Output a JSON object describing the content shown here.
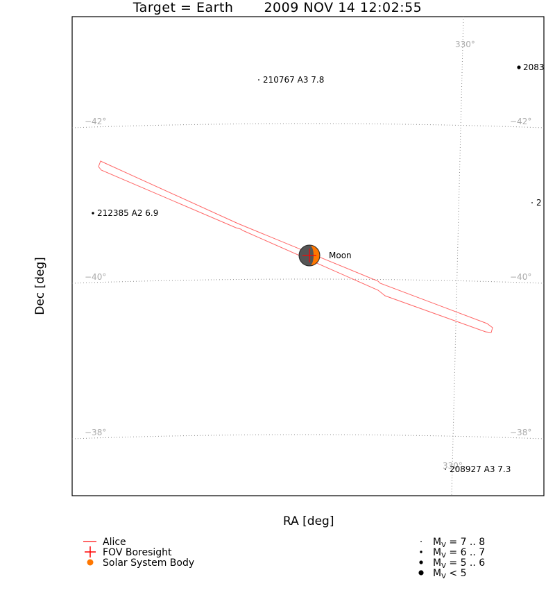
{
  "chart_data": {
    "type": "scatter",
    "title": "Target = Earth",
    "timestamp": "2009 NOV 14 12:02:55",
    "xlabel": "RA [deg]",
    "ylabel": "Dec [deg]",
    "dec_ticks": [
      {
        "label": "−38°",
        "value": -38
      },
      {
        "label": "−40°",
        "value": -40
      },
      {
        "label": "−42°",
        "value": -42
      }
    ],
    "ra_ticks": [
      {
        "label": "330°",
        "value": 330
      },
      {
        "label": "330°",
        "value": 330
      }
    ],
    "stars": [
      {
        "label": "210767 A3 7.8",
        "mag_class": 0
      },
      {
        "label": "2083",
        "mag_class": 2
      },
      {
        "label": "212385 A2 6.9",
        "mag_class": 1
      },
      {
        "label": "2",
        "mag_class": 0
      },
      {
        "label": "208927 A3 7.3",
        "mag_class": 0
      }
    ],
    "bodies": [
      {
        "label": "Moon",
        "color": "#ff7700"
      }
    ],
    "fov": {
      "name": "Alice",
      "color": "#ff6666",
      "boresight_color": "#ff0000"
    },
    "legend": {
      "left": [
        {
          "label": "Alice",
          "symbol": "line",
          "color": "#ff6666"
        },
        {
          "label": "FOV Boresight",
          "symbol": "cross",
          "color": "#ff0000"
        },
        {
          "label": "Solar System Body",
          "symbol": "dot",
          "color": "#ff7700"
        }
      ],
      "right": [
        {
          "prefix": "M",
          "sub": "V",
          "suffix": " = 7 .. 8",
          "size_class": 0
        },
        {
          "prefix": "M",
          "sub": "V",
          "suffix": " = 6 .. 7",
          "size_class": 1
        },
        {
          "prefix": "M",
          "sub": "V",
          "suffix": " = 5 .. 6",
          "size_class": 2
        },
        {
          "prefix": "M",
          "sub": "V",
          "suffix": " < 5",
          "size_class": 3
        }
      ]
    }
  }
}
